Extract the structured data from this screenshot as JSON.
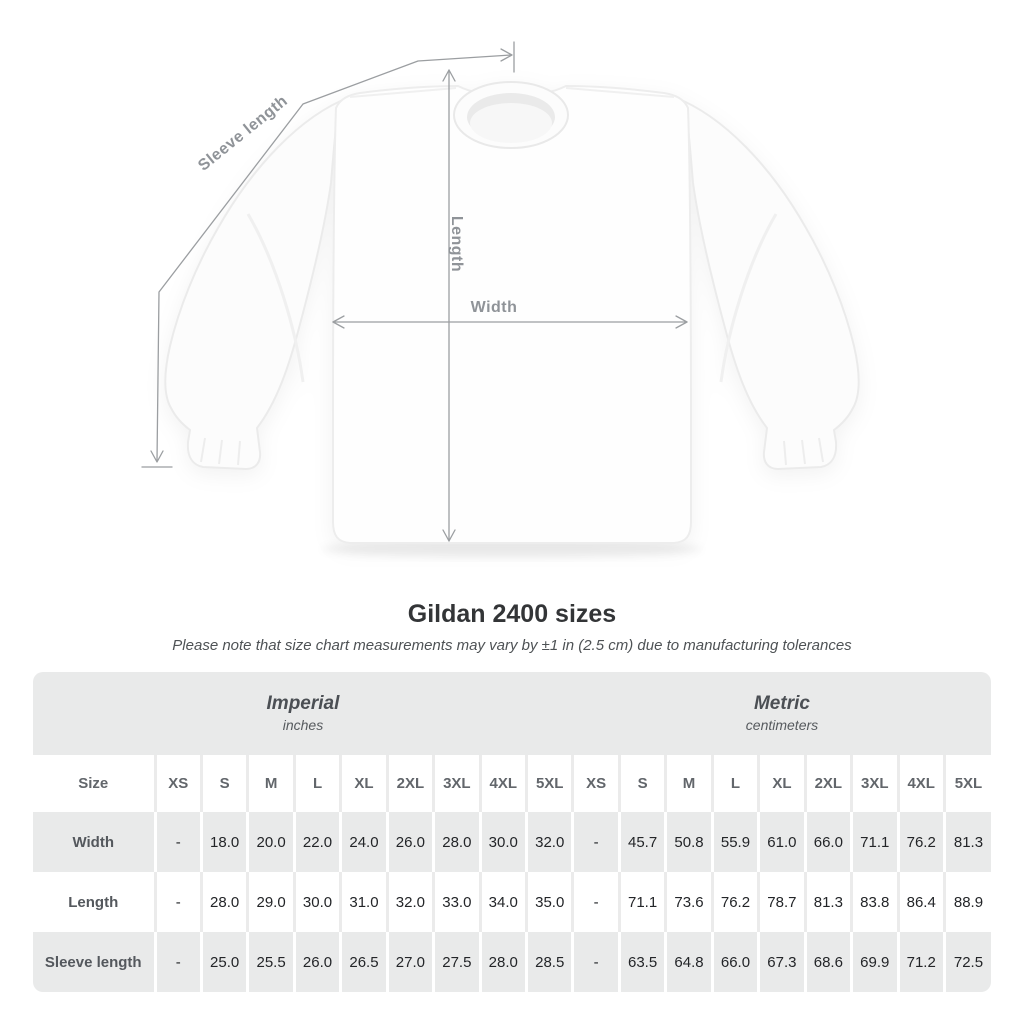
{
  "diagram": {
    "labels": {
      "sleeve_length": "Sleeve length",
      "length": "Length",
      "width": "Width"
    },
    "colors": {
      "measure_line": "#9b9ea1",
      "measure_label": "#8f9398",
      "shirt_fill": "#fdfdfd",
      "shirt_outline": "#ebebeb"
    }
  },
  "title": "Gildan 2400 sizes",
  "subtitle": "Please note that size chart measurements may vary by ±1 in (2.5 cm) due to manufacturing tolerances",
  "table": {
    "unit_groups": [
      {
        "label": "Imperial",
        "sublabel": "inches"
      },
      {
        "label": "Metric",
        "sublabel": "centimeters"
      }
    ],
    "size_header": "Size",
    "sizes": [
      "XS",
      "S",
      "M",
      "L",
      "XL",
      "2XL",
      "3XL",
      "4XL",
      "5XL"
    ],
    "rows": [
      {
        "label": "Width",
        "imperial": [
          "-",
          "18.0",
          "20.0",
          "22.0",
          "24.0",
          "26.0",
          "28.0",
          "30.0",
          "32.0"
        ],
        "metric": [
          "-",
          "45.7",
          "50.8",
          "55.9",
          "61.0",
          "66.0",
          "71.1",
          "76.2",
          "81.3"
        ]
      },
      {
        "label": "Length",
        "imperial": [
          "-",
          "28.0",
          "29.0",
          "30.0",
          "31.0",
          "32.0",
          "33.0",
          "34.0",
          "35.0"
        ],
        "metric": [
          "-",
          "71.1",
          "73.6",
          "76.2",
          "78.7",
          "81.3",
          "83.8",
          "86.4",
          "88.9"
        ]
      },
      {
        "label": "Sleeve length",
        "imperial": [
          "-",
          "25.0",
          "25.5",
          "26.0",
          "26.5",
          "27.0",
          "27.5",
          "28.0",
          "28.5"
        ],
        "metric": [
          "-",
          "63.5",
          "64.8",
          "66.0",
          "67.3",
          "68.6",
          "69.9",
          "71.2",
          "72.5"
        ]
      }
    ],
    "colors": {
      "band_gray": "#e9eaea",
      "row_white": "#ffffff",
      "value_text": "#232528",
      "label_text": "#54585d"
    }
  }
}
